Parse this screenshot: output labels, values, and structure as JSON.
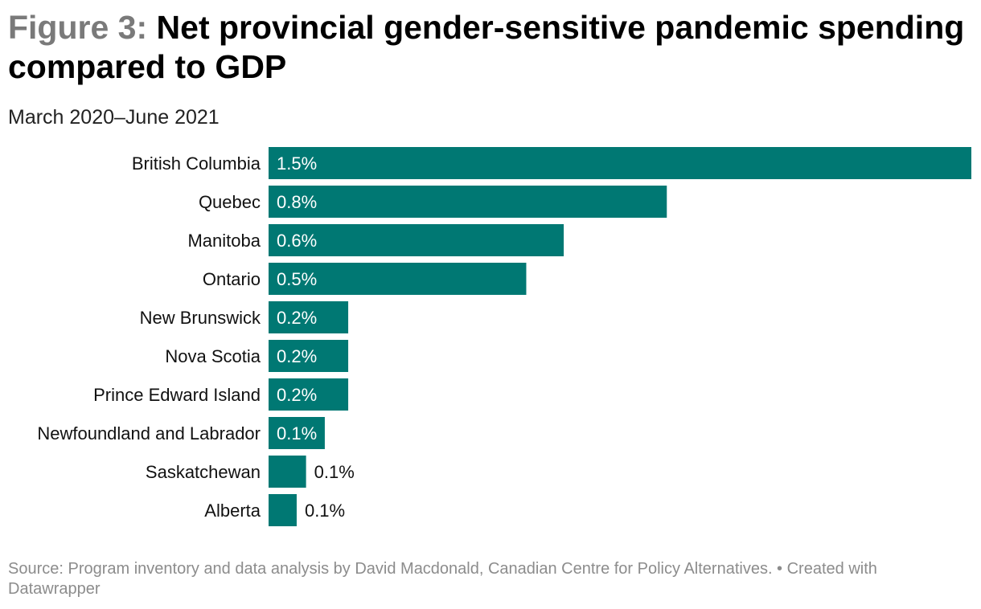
{
  "header": {
    "figure_prefix": "Figure 3:",
    "title": "Net provincial gender-sensitive pandemic spending compared to GDP",
    "subtitle": "March 2020–June 2021"
  },
  "chart_data": {
    "type": "bar",
    "orientation": "horizontal",
    "categories": [
      "British Columbia",
      "Quebec",
      "Manitoba",
      "Ontario",
      "New Brunswick",
      "Nova Scotia",
      "Prince Edward Island",
      "Newfoundland and Labrador",
      "Saskatchewan",
      "Alberta"
    ],
    "values": [
      1.5,
      0.8,
      0.6,
      0.5,
      0.2,
      0.2,
      0.2,
      0.1,
      0.1,
      0.1
    ],
    "bar_lengths": [
      1.5,
      0.85,
      0.63,
      0.55,
      0.17,
      0.17,
      0.17,
      0.12,
      0.08,
      0.06
    ],
    "labels": [
      "1.5%",
      "0.8%",
      "0.6%",
      "0.5%",
      "0.2%",
      "0.2%",
      "0.2%",
      "0.1%",
      "0.1%",
      "0.1%"
    ],
    "xlim": [
      0,
      1.5
    ],
    "unit": "% of GDP",
    "bar_color": "#007873"
  },
  "footer": {
    "source": "Source: Program inventory and data analysis by David Macdonald, Canadian Centre for Policy Alternatives. • Created with Datawrapper"
  }
}
